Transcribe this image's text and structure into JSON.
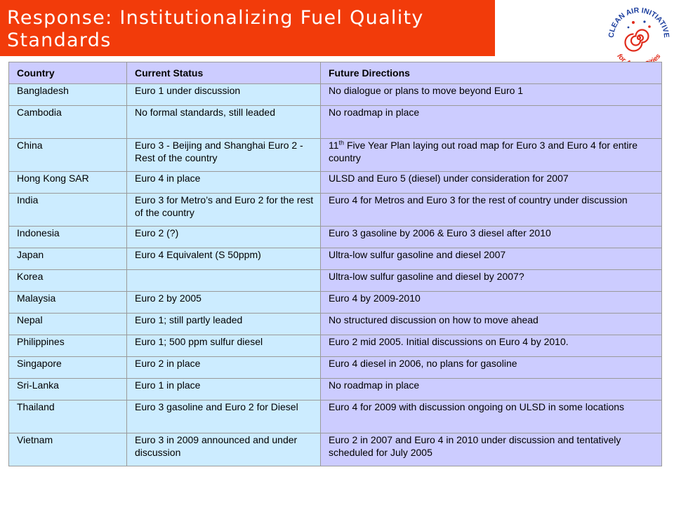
{
  "slide": {
    "title_line1": "Response: Institutionalizing Fuel Quality",
    "title_line2": "Standards",
    "title_bg": "#f23b0a"
  },
  "logo": {
    "icon": "spiral-logo-icon",
    "top_text": "CLEAN AIR INITIATIVE",
    "bottom_text": "for Asian Cities",
    "colors": {
      "blue": "#1d3f9e",
      "red": "#e02a1a"
    }
  },
  "table": {
    "headers": [
      "Country",
      "Current Status",
      "Future Directions"
    ],
    "rows": [
      {
        "country": "Bangladesh",
        "status": "Euro 1 under discussion",
        "future": "No dialogue or plans to move beyond Euro 1"
      },
      {
        "country": "Cambodia",
        "status": "No formal standards, still leaded",
        "future": "No roadmap in place"
      },
      {
        "country": "China",
        "status": "Euro 3 - Beijing and Shanghai Euro 2 - Rest of the country",
        "future_pre": "11",
        "future_sup": "th",
        "future": " Five Year Plan laying out road map for Euro 3 and Euro 4 for entire country"
      },
      {
        "country": "Hong Kong SAR",
        "status": "Euro 4 in place",
        "future": "ULSD and Euro 5 (diesel) under consideration for 2007"
      },
      {
        "country": "India",
        "status": "Euro 3 for Metro’s and Euro 2 for the rest of the country",
        "future": "Euro 4 for Metros and Euro 3 for the rest of country under discussion"
      },
      {
        "country": "Indonesia",
        "status": "Euro 2 (?)",
        "future": "Euro 3 gasoline by 2006 & Euro 3 diesel after 2010"
      },
      {
        "country": "Japan",
        "status": "Euro 4 Equivalent (S 50ppm)",
        "future": "Ultra-low sulfur gasoline and diesel 2007"
      },
      {
        "country": "Korea",
        "status": "",
        "future": "Ultra-low sulfur gasoline and diesel by 2007?"
      },
      {
        "country": "Malaysia",
        "status": "Euro 2 by 2005",
        "future": "Euro 4 by 2009-2010"
      },
      {
        "country": "Nepal",
        "status": "Euro 1; still partly leaded",
        "future": "No structured discussion on how to move ahead"
      },
      {
        "country": "Philippines",
        "status": "Euro 1; 500 ppm sulfur diesel",
        "future": "Euro 2 mid 2005. Initial discussions on Euro 4 by 2010."
      },
      {
        "country": "Singapore",
        "status": "Euro 2 in place",
        "future": "Euro 4 diesel in 2006, no plans for gasoline"
      },
      {
        "country": "Sri-Lanka",
        "status": "Euro 1 in place",
        "future": "No roadmap in place"
      },
      {
        "country": "Thailand",
        "status": "Euro 3 gasoline and Euro 2 for Diesel",
        "future": "Euro 4 for 2009 with discussion ongoing on ULSD in some locations"
      },
      {
        "country": "Vietnam",
        "status": "Euro 3 in 2009 announced and under discussion",
        "future": "Euro 2 in 2007 and Euro 4 in 2010 under discussion and tentatively scheduled for July 2005"
      }
    ]
  }
}
